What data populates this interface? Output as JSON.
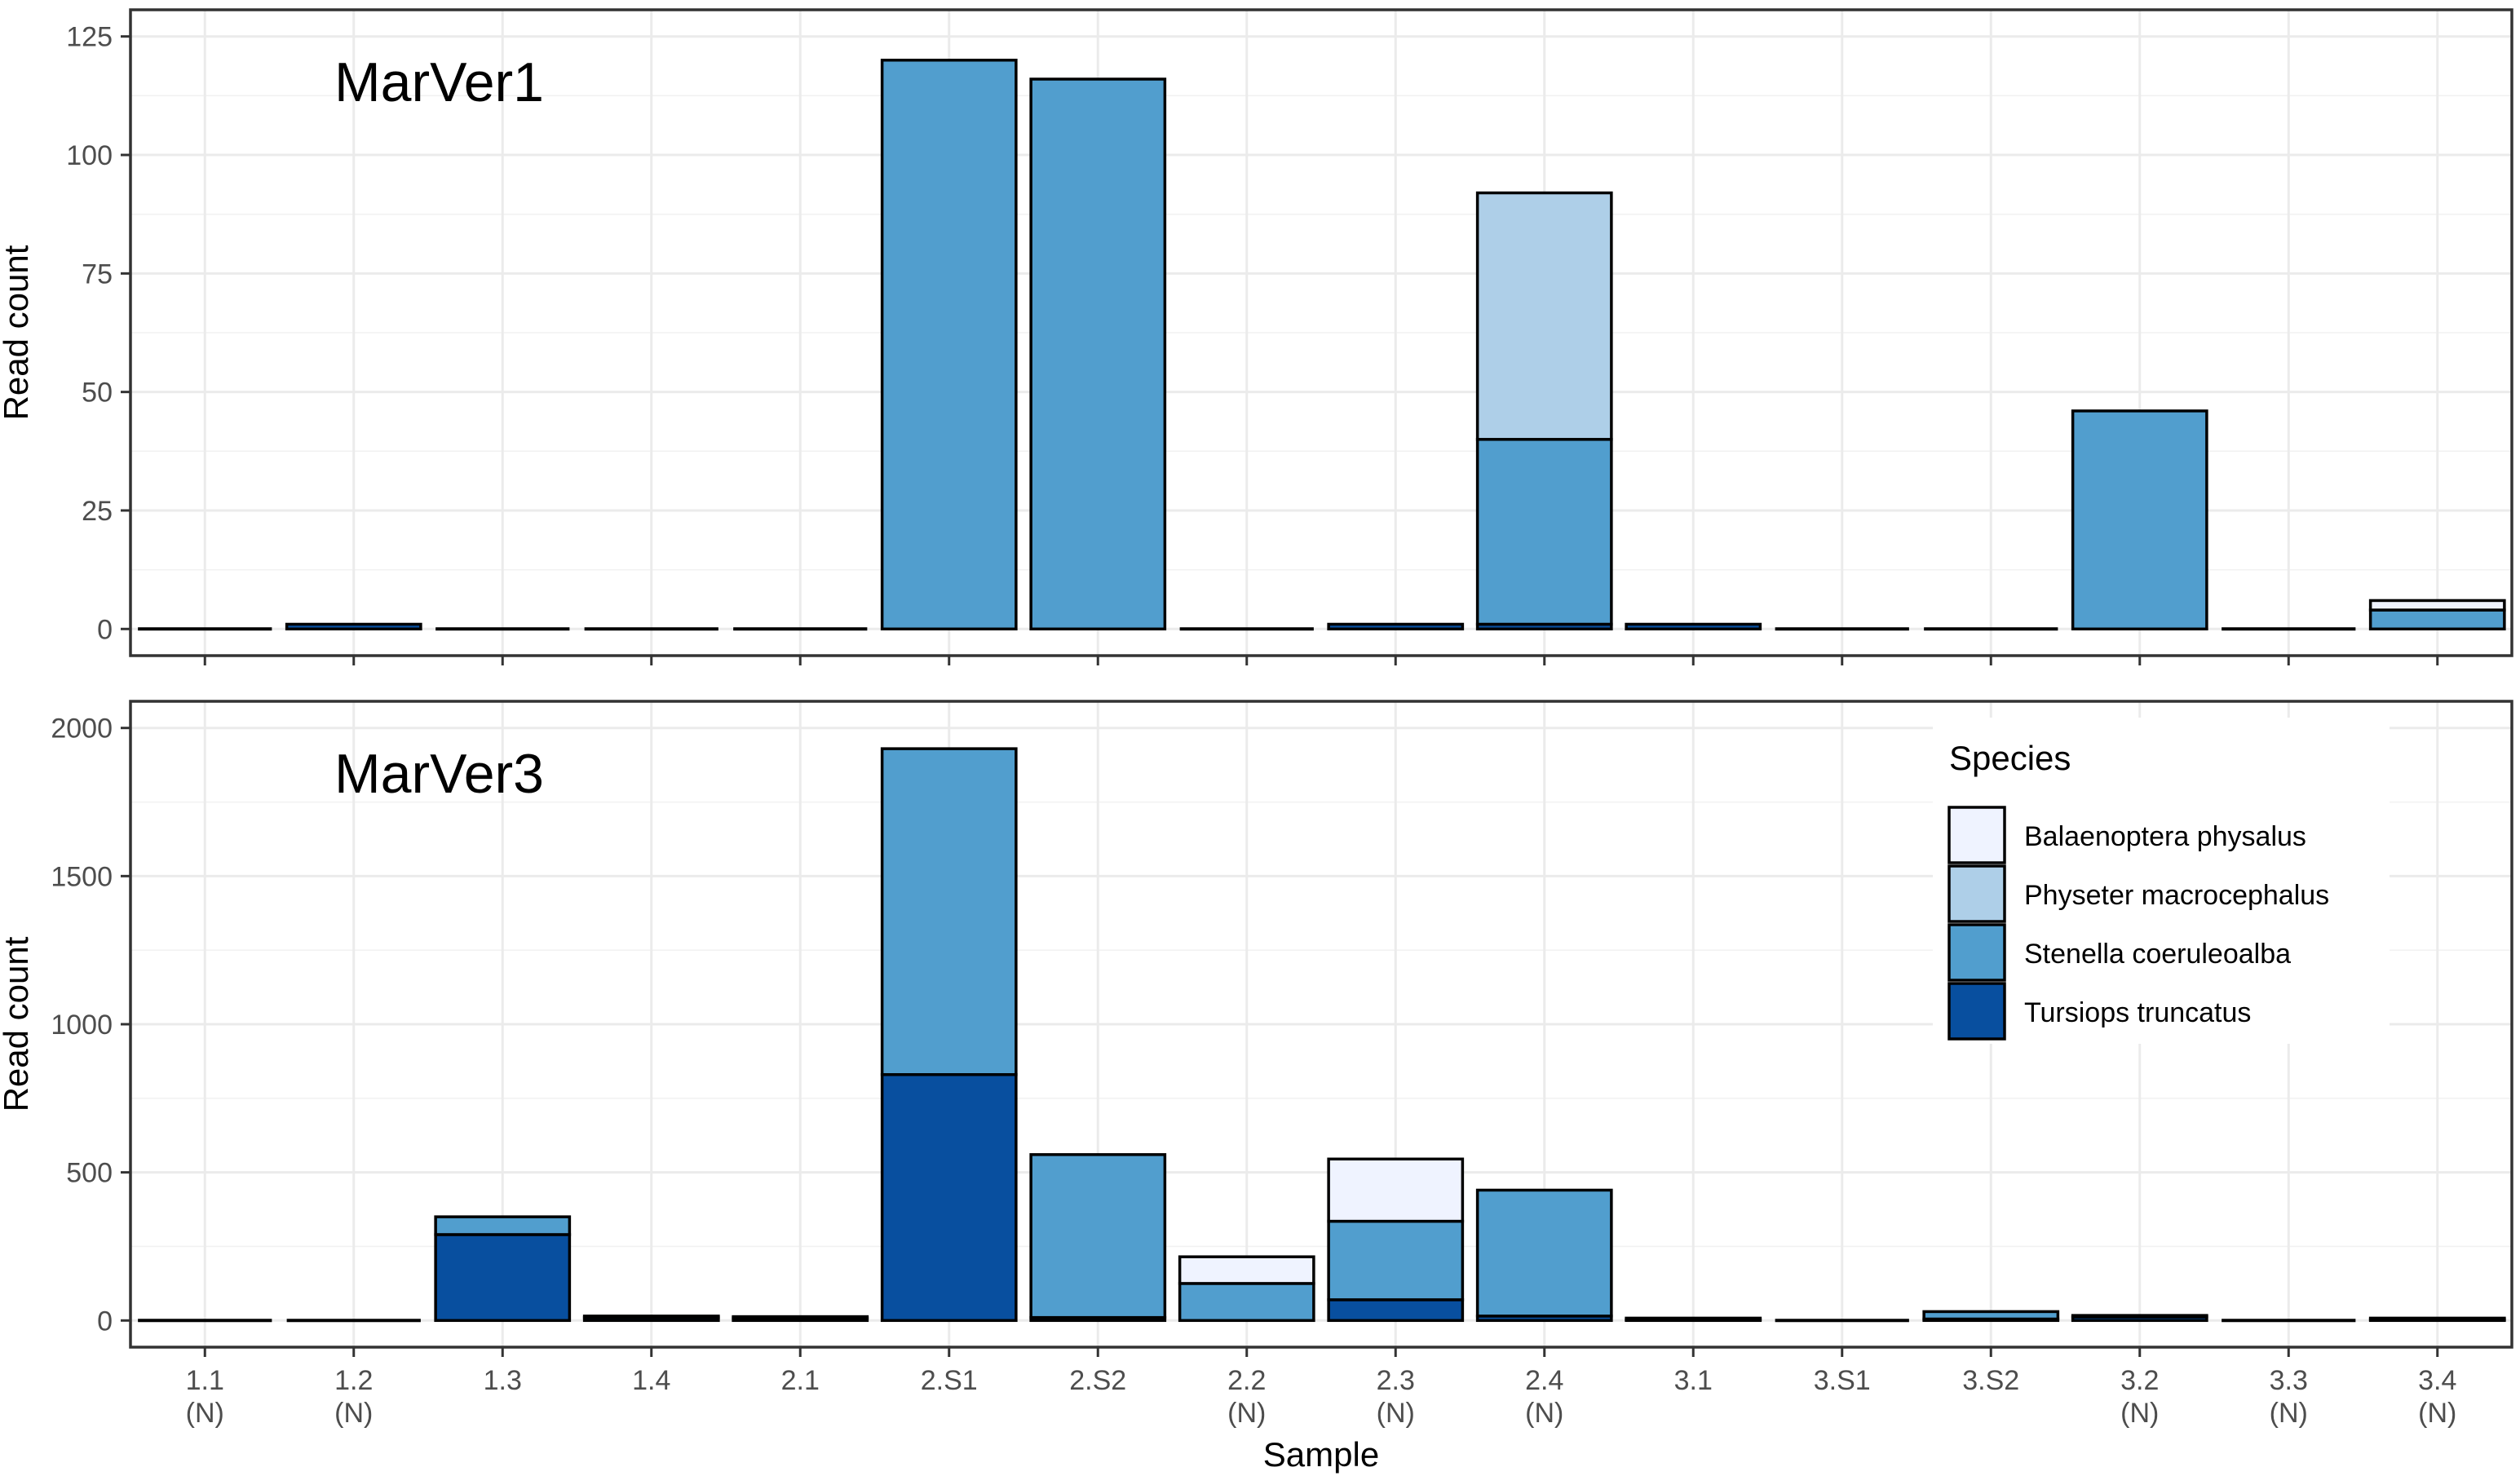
{
  "chart_data": {
    "type": "bar",
    "stacked": true,
    "xlabel": "Sample",
    "ylabel": "Read count",
    "categories": [
      "1.1",
      "1.2",
      "1.3",
      "1.4",
      "2.1",
      "2.S1",
      "2.S2",
      "2.2",
      "2.3",
      "2.4",
      "3.1",
      "3.S1",
      "3.S2",
      "3.2",
      "3.3",
      "3.4"
    ],
    "category_sublabels": [
      "(N)",
      "(N)",
      "",
      "",
      "",
      "",
      "",
      "(N)",
      "(N)",
      "(N)",
      "",
      "",
      "",
      "(N)",
      "(N)",
      "(N)"
    ],
    "legend": {
      "title": "Species",
      "position": "right, inside lower panel",
      "entries": [
        "Balaenoptera physalus",
        "Physeter macrocephalus",
        "Stenella coeruleoalba",
        "Tursiops truncatus"
      ]
    },
    "colors": {
      "Balaenoptera physalus": "#eff3ff",
      "Physeter macrocephalus": "#aecfe8",
      "Stenella coeruleoalba": "#519ece",
      "Tursiops truncatus": "#084f9f"
    },
    "panels": [
      {
        "title": "MarVer1",
        "ylim": [
          0,
          125
        ],
        "yticks": [
          0,
          25,
          50,
          75,
          100,
          125
        ],
        "series": [
          {
            "name": "Balaenoptera physalus",
            "values": [
              0,
              0,
              0,
              0,
              0,
              0,
              0,
              0,
              0,
              0,
              0,
              0,
              0,
              0,
              0,
              2
            ]
          },
          {
            "name": "Physeter macrocephalus",
            "values": [
              0,
              0,
              0,
              0,
              0,
              0,
              0,
              0,
              0,
              52,
              0,
              0,
              0,
              0,
              0,
              0
            ]
          },
          {
            "name": "Stenella coeruleoalba",
            "values": [
              0,
              0,
              0,
              0,
              0,
              120,
              116,
              0,
              0,
              39,
              0,
              0,
              0,
              46,
              0,
              4
            ]
          },
          {
            "name": "Tursiops truncatus",
            "values": [
              0,
              1,
              0,
              0,
              0,
              0,
              0,
              0,
              1,
              1,
              1,
              0,
              0,
              0,
              0,
              0
            ]
          }
        ]
      },
      {
        "title": "MarVer3",
        "ylim": [
          0,
          2000
        ],
        "yticks": [
          0,
          500,
          1000,
          1500,
          2000
        ],
        "series": [
          {
            "name": "Balaenoptera physalus",
            "values": [
              0,
              0,
              0,
              0,
              0,
              0,
              0,
              90,
              210,
              0,
              0,
              0,
              0,
              0,
              0,
              0
            ]
          },
          {
            "name": "Physeter macrocephalus",
            "values": [
              0,
              0,
              0,
              0,
              0,
              0,
              0,
              0,
              0,
              0,
              0,
              0,
              0,
              0,
              0,
              0
            ]
          },
          {
            "name": "Stenella coeruleoalba",
            "values": [
              0,
              0,
              60,
              5,
              5,
              1100,
              550,
              125,
              265,
              425,
              5,
              0,
              25,
              5,
              0,
              5
            ]
          },
          {
            "name": "Tursiops truncatus",
            "values": [
              0,
              0,
              290,
              10,
              8,
              830,
              10,
              0,
              70,
              15,
              3,
              0,
              5,
              12,
              0,
              3
            ]
          }
        ]
      }
    ]
  }
}
